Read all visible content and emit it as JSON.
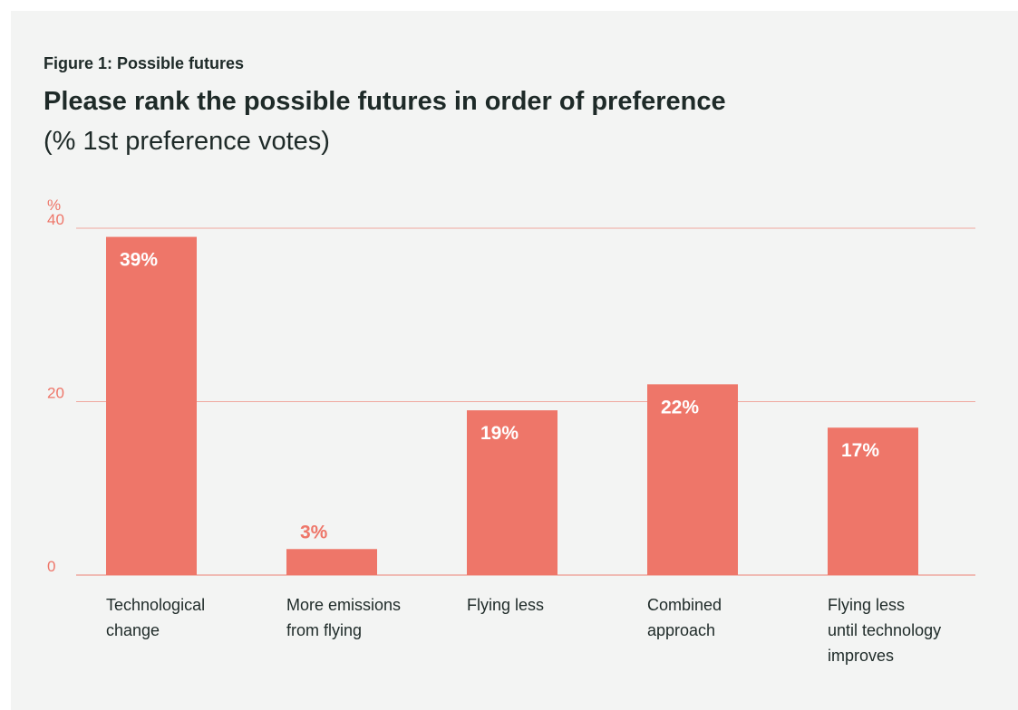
{
  "figure_label": "Figure 1: Possible futures",
  "title": "Please rank the possible futures in order of preference",
  "subtitle": "(% 1st preference votes)",
  "colors": {
    "bar": "#ee7669",
    "text": "#1e2a28",
    "background": "#f3f4f3",
    "label_inside": "#ffffff"
  },
  "chart_data": {
    "type": "bar",
    "title": "Please rank the possible futures in order of preference",
    "subtitle": "(% 1st preference votes)",
    "ylabel": "%",
    "ylim": [
      0,
      40
    ],
    "yticks": [
      "0",
      "20",
      "40"
    ],
    "grid": true,
    "categories": [
      [
        "Technological",
        "change"
      ],
      [
        "More emissions",
        "from flying"
      ],
      [
        "Flying less"
      ],
      [
        "Combined",
        "approach"
      ],
      [
        "Flying less",
        "until technology",
        "improves"
      ]
    ],
    "values": [
      39,
      3,
      19,
      22,
      17
    ],
    "data_labels": [
      "39%",
      "3%",
      "19%",
      "22%",
      "17%"
    ]
  }
}
